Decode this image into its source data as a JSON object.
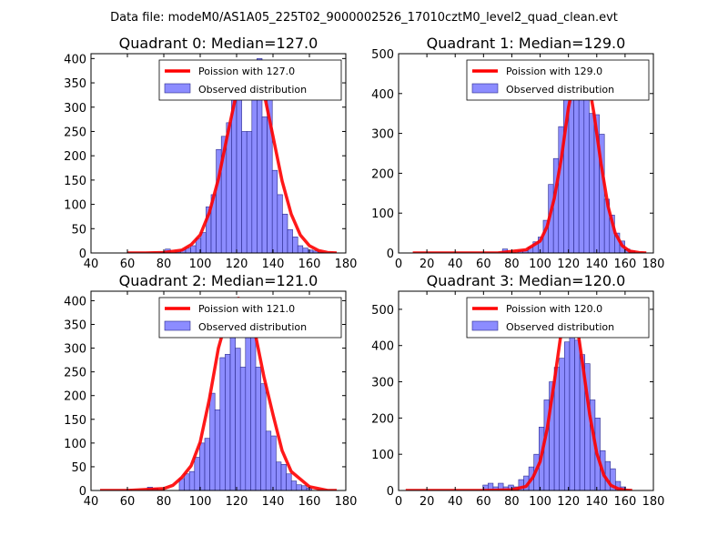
{
  "figure_title": "Data file: modeM0/AS1A05_225T02_9000002526_17010cztM0_level2_quad_clean.evt",
  "colors": {
    "bar_fill": "#8080ff",
    "bar_edge": "#2a2a8c",
    "curve": "#ff0000"
  },
  "chart_data": [
    {
      "type": "bar",
      "title": "Quadrant 0: Median=127.0",
      "legend": [
        "Poission with 127.0",
        "Observed distribution"
      ],
      "legend_position": "upper-right",
      "median": 127.0,
      "xlim": [
        40,
        180
      ],
      "ylim": [
        0,
        410
      ],
      "xticks": [
        40,
        60,
        80,
        100,
        120,
        140,
        160,
        180
      ],
      "yticks": [
        0,
        50,
        100,
        150,
        200,
        250,
        300,
        350,
        400
      ],
      "bin_width": 2.8,
      "bin_starts": [
        78,
        80.8,
        86.4,
        89.2,
        92,
        94.8,
        97.6,
        100.4,
        103.2,
        106,
        108.8,
        111.6,
        114.4,
        117.2,
        120,
        122.8,
        125.6,
        128.4,
        131.2,
        134,
        136.8,
        139.6,
        142.4,
        145.2,
        148,
        150.8,
        153.6,
        156.4,
        159.2,
        162,
        164.8
      ],
      "values": [
        2,
        8,
        2,
        6,
        10,
        15,
        30,
        42,
        95,
        120,
        213,
        240,
        268,
        330,
        357,
        250,
        250,
        370,
        400,
        280,
        362,
        170,
        120,
        80,
        48,
        33,
        15,
        10,
        6,
        4,
        2
      ],
      "curve_x": [
        60,
        70,
        80,
        90,
        95,
        100,
        105,
        110,
        115,
        120,
        125,
        127,
        130,
        135,
        140,
        145,
        150,
        155,
        160,
        165,
        170,
        175
      ],
      "curve_y": [
        0,
        0,
        1,
        6,
        17,
        37,
        83,
        152,
        243,
        330,
        387,
        392,
        386,
        330,
        240,
        148,
        80,
        37,
        15,
        5,
        1,
        0
      ]
    },
    {
      "type": "bar",
      "title": "Quadrant 1: Median=129.0",
      "legend": [
        "Poission with 129.0",
        "Observed distribution"
      ],
      "legend_position": "upper-right",
      "median": 129.0,
      "xlim": [
        0,
        180
      ],
      "ylim": [
        0,
        500
      ],
      "xticks": [
        0,
        20,
        40,
        60,
        80,
        100,
        120,
        140,
        160,
        180
      ],
      "yticks": [
        0,
        100,
        200,
        300,
        400,
        500
      ],
      "bin_width": 3.6,
      "bin_starts": [
        73.4,
        84.2,
        87.8,
        91.4,
        95,
        98.6,
        102.2,
        105.8,
        109.4,
        113,
        116.6,
        120.2,
        123.8,
        127.4,
        131,
        134.6,
        138.2,
        141.8,
        145.4,
        149,
        152.6,
        156.2,
        159.8,
        163.4
      ],
      "values": [
        10,
        5,
        5,
        15,
        28,
        40,
        82,
        172,
        237,
        317,
        387,
        435,
        448,
        483,
        440,
        350,
        347,
        298,
        135,
        95,
        50,
        30,
        10,
        5
      ],
      "curve_x": [
        10,
        70,
        90,
        100,
        105,
        110,
        115,
        120,
        125,
        129,
        133,
        138,
        143,
        148,
        153,
        158,
        163,
        170,
        175
      ],
      "curve_y": [
        0,
        0,
        8,
        30,
        67,
        137,
        238,
        365,
        450,
        478,
        455,
        350,
        225,
        117,
        50,
        18,
        5,
        1,
        0
      ]
    },
    {
      "type": "bar",
      "title": "Quadrant 2: Median=121.0",
      "legend": [
        "Poission with 121.0",
        "Observed distribution"
      ],
      "legend_position": "upper-right",
      "median": 121.0,
      "xlim": [
        40,
        180
      ],
      "ylim": [
        0,
        420
      ],
      "xticks": [
        40,
        60,
        80,
        100,
        120,
        140,
        160,
        180
      ],
      "yticks": [
        0,
        50,
        100,
        150,
        200,
        250,
        300,
        350,
        400
      ],
      "bin_width": 2.8,
      "bin_starts": [
        59.5,
        71,
        74,
        88.5,
        91.3,
        94.1,
        96.9,
        99.7,
        102.5,
        105.3,
        108.1,
        110.9,
        113.7,
        116.5,
        119.3,
        122.1,
        124.9,
        127.7,
        130.5,
        133.3,
        136.1,
        138.9,
        141.7,
        144.5,
        147.3,
        150.1,
        152.9,
        155.7,
        158.5
      ],
      "values": [
        2,
        7,
        5,
        25,
        35,
        40,
        70,
        100,
        110,
        205,
        170,
        280,
        287,
        397,
        300,
        260,
        357,
        352,
        260,
        225,
        125,
        115,
        60,
        55,
        35,
        20,
        12,
        10,
        5
      ],
      "curve_x": [
        45,
        60,
        80,
        85,
        90,
        95,
        100,
        105,
        110,
        115,
        118,
        121,
        124,
        127,
        130,
        135,
        140,
        145,
        150,
        160,
        170,
        175
      ],
      "curve_y": [
        0,
        0,
        4,
        11,
        28,
        52,
        102,
        192,
        300,
        368,
        400,
        405,
        398,
        370,
        335,
        240,
        160,
        84,
        40,
        8,
        0,
        0
      ]
    },
    {
      "type": "bar",
      "title": "Quadrant 3: Median=120.0",
      "legend": [
        "Poission with 120.0",
        "Observed distribution"
      ],
      "legend_position": "upper-right",
      "median": 120.0,
      "xlim": [
        0,
        180
      ],
      "ylim": [
        0,
        550
      ],
      "xticks": [
        0,
        20,
        40,
        60,
        80,
        100,
        120,
        140,
        160,
        180
      ],
      "yticks": [
        0,
        100,
        200,
        300,
        400,
        500
      ],
      "bin_width": 3.6,
      "bin_starts": [
        59.6,
        63.2,
        66.8,
        70.4,
        74,
        77.6,
        81.2,
        84.8,
        88.4,
        92,
        95.6,
        99.2,
        102.8,
        106.4,
        110,
        113.6,
        117.2,
        120.8,
        124.4,
        128,
        131.6,
        135.2,
        138.8,
        142.4,
        146,
        149.6,
        153.2,
        156.8
      ],
      "values": [
        15,
        20,
        10,
        20,
        10,
        15,
        10,
        30,
        40,
        65,
        100,
        175,
        250,
        300,
        340,
        365,
        410,
        440,
        415,
        375,
        350,
        250,
        200,
        110,
        80,
        60,
        25,
        10
      ],
      "curve_x": [
        5,
        60,
        80,
        90,
        95,
        100,
        105,
        110,
        115,
        118,
        121,
        124,
        127,
        130,
        135,
        140,
        145,
        150,
        155,
        160,
        165
      ],
      "curve_y": [
        0,
        0,
        2,
        11,
        37,
        80,
        170,
        300,
        440,
        500,
        515,
        490,
        430,
        350,
        210,
        103,
        42,
        14,
        5,
        1,
        0
      ]
    }
  ]
}
